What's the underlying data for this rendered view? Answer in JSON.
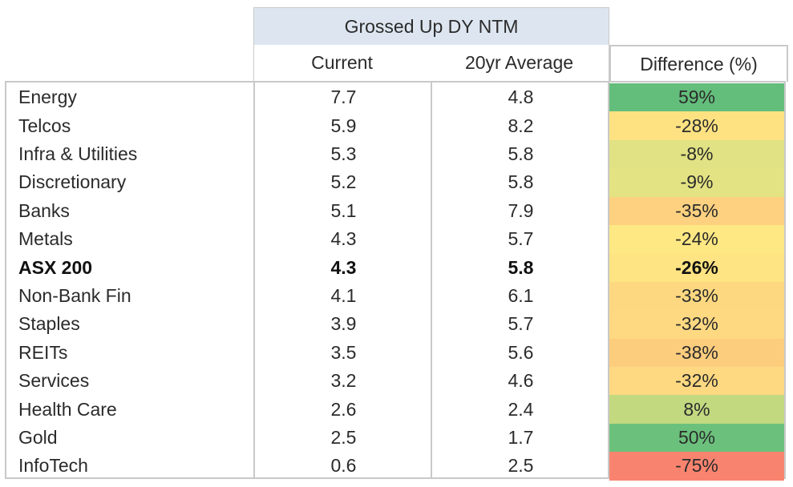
{
  "table": {
    "group_header": "Grossed Up DY NTM",
    "columns": {
      "current": "Current",
      "average": "20yr Average",
      "difference": "Difference (%)"
    },
    "rows": [
      {
        "label": "Energy",
        "current": "7.7",
        "average": "4.8",
        "difference": "59%",
        "color": "#63be7b",
        "bold": false
      },
      {
        "label": "Telcos",
        "current": "5.9",
        "average": "8.2",
        "difference": "-28%",
        "color": "#fee282",
        "bold": false
      },
      {
        "label": "Infra & Utilities",
        "current": "5.3",
        "average": "5.8",
        "difference": "-8%",
        "color": "#e0e283",
        "bold": false
      },
      {
        "label": "Discretionary",
        "current": "5.2",
        "average": "5.8",
        "difference": "-9%",
        "color": "#e3e383",
        "bold": false
      },
      {
        "label": "Banks",
        "current": "5.1",
        "average": "7.9",
        "difference": "-35%",
        "color": "#fdd17f",
        "bold": false
      },
      {
        "label": "Metals",
        "current": "4.3",
        "average": "5.7",
        "difference": "-24%",
        "color": "#fee883",
        "bold": false
      },
      {
        "label": "ASX 200",
        "current": "4.3",
        "average": "5.8",
        "difference": "-26%",
        "color": "#fee482",
        "bold": true
      },
      {
        "label": "Non-Bank Fin",
        "current": "4.1",
        "average": "6.1",
        "difference": "-33%",
        "color": "#fdd880",
        "bold": false
      },
      {
        "label": "Staples",
        "current": "3.9",
        "average": "5.7",
        "difference": "-32%",
        "color": "#fed981",
        "bold": false
      },
      {
        "label": "REITs",
        "current": "3.5",
        "average": "5.6",
        "difference": "-38%",
        "color": "#fdcd7e",
        "bold": false
      },
      {
        "label": "Services",
        "current": "3.2",
        "average": "4.6",
        "difference": "-32%",
        "color": "#fed981",
        "bold": false
      },
      {
        "label": "Health Care",
        "current": "2.6",
        "average": "2.4",
        "difference": "8%",
        "color": "#c2d980",
        "bold": false
      },
      {
        "label": "Gold",
        "current": "2.5",
        "average": "1.7",
        "difference": "50%",
        "color": "#6bc17c",
        "bold": false
      },
      {
        "label": "InfoTech",
        "current": "0.6",
        "average": "2.5",
        "difference": "-75%",
        "color": "#f8846f",
        "bold": false
      }
    ]
  },
  "chart_data": {
    "type": "table",
    "title": "Grossed Up DY NTM",
    "columns": [
      "Current",
      "20yr Average",
      "Difference (%)"
    ],
    "categories": [
      "Energy",
      "Telcos",
      "Infra & Utilities",
      "Discretionary",
      "Banks",
      "Metals",
      "ASX 200",
      "Non-Bank Fin",
      "Staples",
      "REITs",
      "Services",
      "Health Care",
      "Gold",
      "InfoTech"
    ],
    "series": [
      {
        "name": "Current",
        "values": [
          7.7,
          5.9,
          5.3,
          5.2,
          5.1,
          4.3,
          4.3,
          4.1,
          3.9,
          3.5,
          3.2,
          2.6,
          2.5,
          0.6
        ]
      },
      {
        "name": "20yr Average",
        "values": [
          4.8,
          8.2,
          5.8,
          5.8,
          7.9,
          5.7,
          5.8,
          6.1,
          5.7,
          5.6,
          4.6,
          2.4,
          1.7,
          2.5
        ]
      },
      {
        "name": "Difference (%)",
        "values": [
          59,
          -28,
          -8,
          -9,
          -35,
          -24,
          -26,
          -33,
          -32,
          -38,
          -32,
          8,
          50,
          -75
        ]
      }
    ]
  }
}
